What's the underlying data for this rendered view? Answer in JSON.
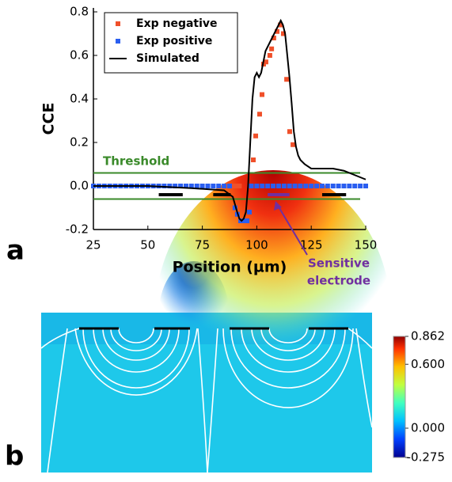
{
  "chart_data": [
    {
      "type": "scatter",
      "panel_label": "a",
      "xlabel": "Position (µm)",
      "ylabel": "CCE",
      "xlim": [
        25,
        150
      ],
      "xticks": [
        25,
        50,
        75,
        100,
        125,
        150
      ],
      "ylim": [
        -0.2,
        0.8
      ],
      "yticks": [
        -0.2,
        {
          "value": 0,
          "label": "0.0"
        },
        0.2,
        0.4,
        0.6,
        0.8
      ],
      "legend": "upper left",
      "series": [
        {
          "name": "Exp negative",
          "color": "#f0502a",
          "kind": "points",
          "x": [
            88,
            89,
            90,
            91,
            92,
            98.4,
            99.5,
            101.3,
            102.4,
            103.1,
            104.2,
            106,
            106.8,
            107.8,
            109.3,
            110.8,
            112.2,
            113.7,
            115.1,
            116.6
          ],
          "values": [
            0,
            0,
            0,
            0,
            0,
            0.12,
            0.23,
            0.33,
            0.42,
            0.56,
            0.57,
            0.6,
            0.63,
            0.68,
            0.71,
            0.74,
            0.7,
            0.49,
            0.25,
            0.19
          ]
        },
        {
          "name": "Exp positive",
          "color": "#2a5ef0",
          "kind": "points",
          "x": [
            25,
            27.5,
            30,
            32.5,
            35,
            37.5,
            40,
            42.5,
            45,
            47.5,
            50,
            52.5,
            55,
            57.5,
            60,
            62.5,
            65,
            67.5,
            70,
            72.5,
            75,
            77.5,
            80,
            82.5,
            85,
            87.5,
            90,
            91.1,
            92.6,
            94,
            95.5,
            96.6,
            97.5,
            100,
            102.5,
            105,
            107.5,
            110,
            112.5,
            115,
            117.5,
            120,
            122.5,
            125,
            127.5,
            130,
            132.5,
            135,
            137.5,
            140,
            142.5,
            145,
            147.5,
            150
          ],
          "values": [
            0,
            0,
            0,
            0,
            0,
            0,
            0,
            0,
            0,
            0,
            0,
            0,
            0,
            0,
            0,
            0,
            0,
            0,
            0,
            0,
            0,
            0,
            0,
            0,
            0,
            0,
            -0.1,
            -0.13,
            -0.16,
            -0.16,
            -0.16,
            -0.12,
            0,
            0,
            0,
            0,
            0,
            0,
            0,
            0,
            0,
            0,
            0,
            0,
            0,
            0,
            0,
            0,
            0,
            0,
            0,
            0,
            0,
            0
          ]
        },
        {
          "name": "Simulated",
          "color": "#000000",
          "kind": "line",
          "x": [
            25,
            50,
            70,
            85,
            89,
            91,
            92,
            93,
            94,
            95,
            96,
            97,
            98,
            99,
            100,
            101,
            102,
            103,
            104,
            106,
            108,
            110,
            111,
            112,
            113,
            114,
            115,
            116,
            117,
            118,
            119,
            120,
            122,
            125,
            130,
            135,
            140,
            145,
            150
          ],
          "values": [
            0,
            0,
            -0.01,
            -0.02,
            -0.05,
            -0.12,
            -0.15,
            -0.16,
            -0.15,
            -0.12,
            0,
            0.2,
            0.4,
            0.5,
            0.52,
            0.5,
            0.52,
            0.57,
            0.62,
            0.66,
            0.7,
            0.74,
            0.76,
            0.74,
            0.7,
            0.6,
            0.5,
            0.38,
            0.25,
            0.18,
            0.14,
            0.12,
            0.1,
            0.08,
            0.08,
            0.08,
            0.07,
            0.05,
            0.03
          ]
        }
      ],
      "threshold_label": "Threshold",
      "threshold": [
        0.06,
        -0.06
      ],
      "threshold_color": "#3a8a2a",
      "electrode_y": -0.04,
      "electrodes": [
        [
          55,
          66
        ],
        [
          80,
          88
        ],
        [
          105,
          115
        ],
        [
          130,
          141
        ]
      ],
      "sensitive_color": "#7030a0",
      "annotation": [
        "Sensitive",
        "electrode"
      ]
    },
    {
      "type": "colormap",
      "panel_label": "b",
      "clim": [
        -0.275,
        0.862
      ],
      "cticks": [
        0.862,
        {
          "value": 0.6,
          "label": "0.600"
        },
        {
          "value": 0,
          "label": "0.000"
        },
        -0.275
      ]
    }
  ]
}
